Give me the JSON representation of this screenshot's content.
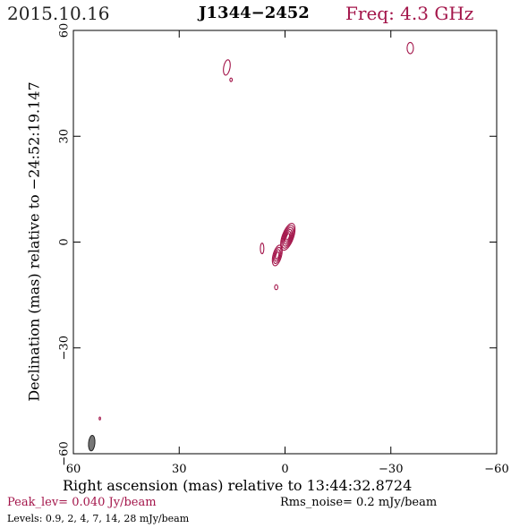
{
  "header": {
    "date": "2015.10.16",
    "source": "J1344−2452",
    "freq": "Freq: 4.3 GHz"
  },
  "footer": {
    "peak": "Peak_lev=  0.040 Jy/beam",
    "rms": "Rms_noise=  0.2 mJy/beam",
    "levels": "Levels: 0.9,   2,   4,   7,  14,  28 mJy/beam"
  },
  "colors": {
    "contour": "#a3154a",
    "beam": "#777777"
  },
  "chart_data": {
    "type": "contour",
    "xlabel": "Right ascension (mas) relative to 13:44:32.8724",
    "ylabel": "Declination (mas) relative to −24:52:19.147",
    "xlim": [
      60,
      -60
    ],
    "ylim": [
      -60,
      60
    ],
    "x_ticks": [
      60,
      30,
      0,
      -30,
      -60
    ],
    "y_ticks": [
      -60,
      -30,
      0,
      30,
      60
    ],
    "x_tick_labels": [
      "60",
      "30",
      "0",
      "−30",
      "−60"
    ],
    "y_tick_labels": [
      "−60",
      "−30",
      "0",
      "30",
      "60"
    ],
    "contour_levels_mJy": [
      0.9,
      2,
      4,
      7,
      14,
      28
    ],
    "peak_Jy_per_beam": 0.04,
    "rms_mJy_per_beam": 0.2,
    "components": [
      {
        "ra": 16.5,
        "dec": 49.5,
        "a": 0.9,
        "b": 2.2,
        "angle": 10,
        "levels": 1
      },
      {
        "ra": 15.3,
        "dec": 46.0,
        "a": 0.35,
        "b": 0.5,
        "angle": 0,
        "levels": 1
      },
      {
        "ra": -35.5,
        "dec": 55.0,
        "a": 0.9,
        "b": 1.6,
        "angle": 0,
        "levels": 1
      },
      {
        "ra": -0.8,
        "dec": 1.5,
        "a": 1.6,
        "b": 4.0,
        "angle": 20,
        "levels": 6
      },
      {
        "ra": 2.2,
        "dec": -3.8,
        "a": 1.2,
        "b": 3.0,
        "angle": 15,
        "levels": 4
      },
      {
        "ra": 6.5,
        "dec": -1.8,
        "a": 0.5,
        "b": 1.5,
        "angle": 0,
        "levels": 1
      },
      {
        "ra": 2.5,
        "dec": -12.8,
        "a": 0.45,
        "b": 0.7,
        "angle": 0,
        "levels": 1
      },
      {
        "ra": 52.5,
        "dec": -50.0,
        "a": 0.2,
        "b": 0.4,
        "angle": 0,
        "levels": 1
      }
    ],
    "beam": {
      "ra": 54.8,
      "dec": -57.0,
      "a": 0.9,
      "b": 2.2,
      "angle": 5
    }
  }
}
